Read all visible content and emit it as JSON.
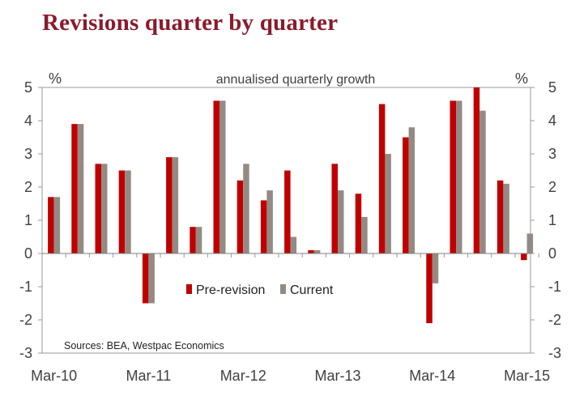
{
  "chart_data": {
    "type": "bar",
    "title": "Revisions quarter by quarter",
    "subtitle": "annualised quarterly growth",
    "y_unit_left": "%",
    "y_unit_right": "%",
    "ylim": [
      -3,
      5
    ],
    "yticks": [
      -3,
      -2,
      -1,
      0,
      1,
      2,
      3,
      4,
      5
    ],
    "ytick_labels": [
      "-3",
      "-2",
      "-1",
      "0",
      "1",
      "2",
      "3",
      "4",
      "5"
    ],
    "x_tick_labels": [
      "Mar-10",
      "Mar-11",
      "Mar-12",
      "Mar-13",
      "Mar-14",
      "Mar-15"
    ],
    "categories": [
      "Mar-10",
      "Jun-10",
      "Sep-10",
      "Dec-10",
      "Mar-11",
      "Jun-11",
      "Sep-11",
      "Dec-11",
      "Mar-12",
      "Jun-12",
      "Sep-12",
      "Dec-12",
      "Mar-13",
      "Jun-13",
      "Sep-13",
      "Dec-13",
      "Mar-14",
      "Jun-14",
      "Sep-14",
      "Dec-14",
      "Mar-15"
    ],
    "series": [
      {
        "name": "Pre-revision",
        "color": "#C00000",
        "values": [
          1.7,
          3.9,
          2.7,
          2.5,
          -1.5,
          2.9,
          0.8,
          4.6,
          2.2,
          1.6,
          2.5,
          0.1,
          2.7,
          1.8,
          4.5,
          3.5,
          -2.1,
          4.6,
          5.0,
          2.2,
          -0.2
        ]
      },
      {
        "name": "Current",
        "color": "#948A84",
        "values": [
          1.7,
          3.9,
          2.7,
          2.5,
          -1.5,
          2.9,
          0.8,
          4.6,
          2.7,
          1.9,
          0.5,
          0.1,
          1.9,
          1.1,
          3.0,
          3.8,
          -0.9,
          4.6,
          4.3,
          2.1,
          0.6
        ]
      }
    ],
    "legend": {
      "position": "center"
    },
    "annotation": "Sources: BEA, Westpac Economics",
    "grid": false
  }
}
